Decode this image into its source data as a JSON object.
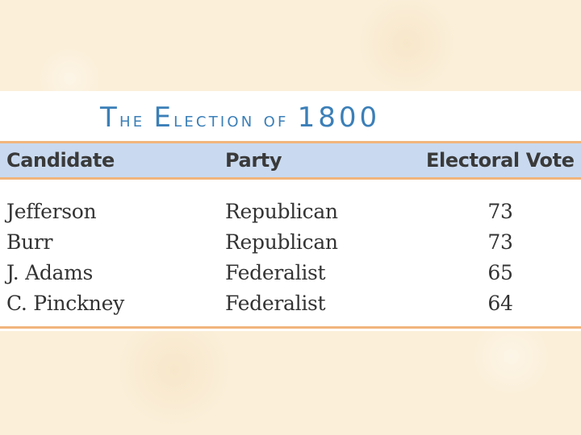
{
  "title": {
    "cap1": "T",
    "rest1": "he ",
    "cap2": "E",
    "rest2": "lection of ",
    "year": "1800"
  },
  "table": {
    "columns": [
      "Candidate",
      "Party",
      "Electoral Vote"
    ],
    "rows": [
      {
        "candidate": "Jefferson",
        "party": "Republican",
        "vote": "73"
      },
      {
        "candidate": "Burr",
        "party": "Republican",
        "vote": "73"
      },
      {
        "candidate": "J. Adams",
        "party": "Federalist",
        "vote": "65"
      },
      {
        "candidate": "C. Pinckney",
        "party": "Federalist",
        "vote": "64"
      }
    ]
  },
  "colors": {
    "background": "#fbefd9",
    "title": "#3b7fb8",
    "header_band": "#c9daf0",
    "rule": "#f1b57c"
  }
}
